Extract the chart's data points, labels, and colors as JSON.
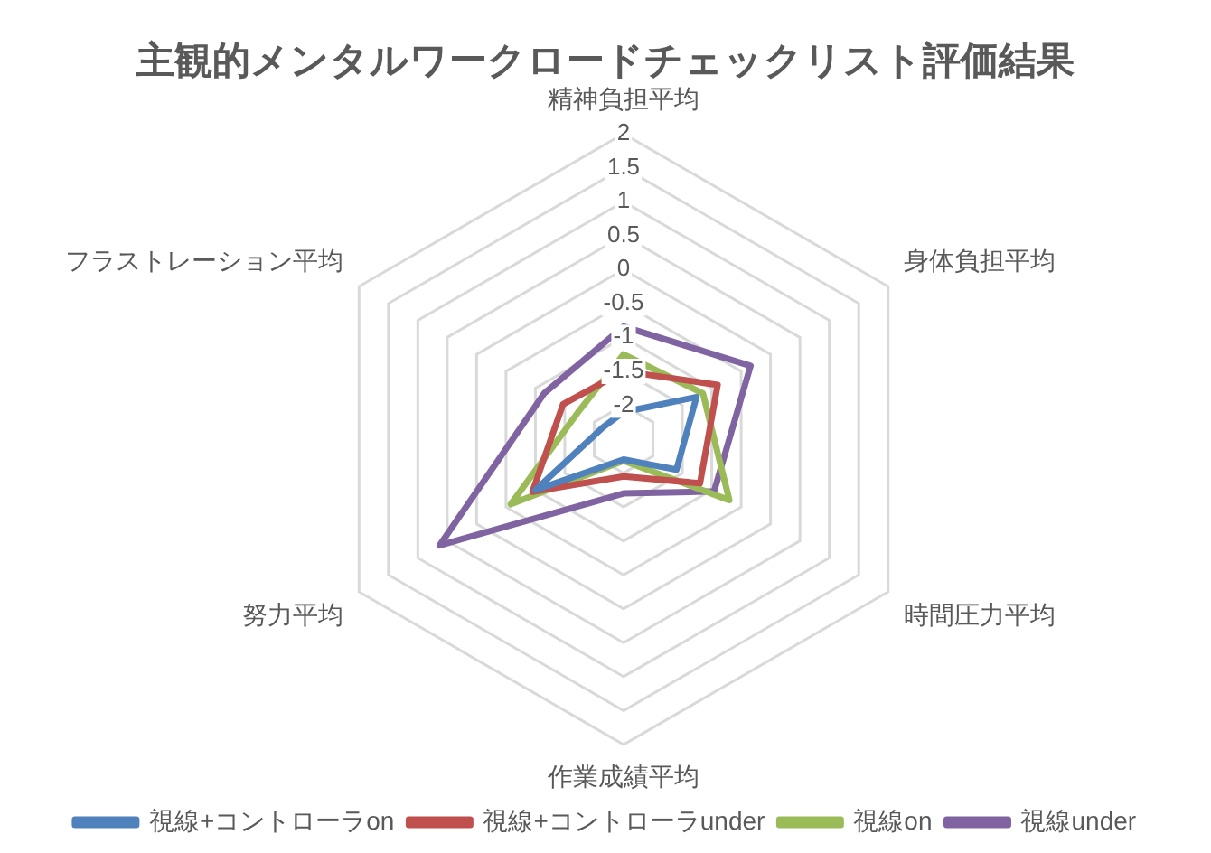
{
  "chart_data": {
    "type": "radar",
    "title": "主観的メンタルワークロードチェックリスト評価結果",
    "categories": [
      "精神負担平均",
      "身体負担平均",
      "時間圧力平均",
      "作業成績平均",
      "努力平均",
      "フラストレーション平均"
    ],
    "series": [
      {
        "name": "視線+コントローラon",
        "color": "#4f81bd",
        "values": [
          -2.1,
          -1.26,
          -1.6,
          -2.2,
          -1.0,
          -2.15
        ]
      },
      {
        "name": "視線+コントローラunder",
        "color": "#c0504d",
        "values": [
          -1.5,
          -0.9,
          -1.2,
          -1.95,
          -0.95,
          -1.47
        ]
      },
      {
        "name": "視線on",
        "color": "#9bbb59",
        "values": [
          -1.25,
          -1.15,
          -0.7,
          -2.18,
          -0.58,
          -1.72
        ]
      },
      {
        "name": "視線under",
        "color": "#8064a2",
        "values": [
          -0.84,
          -0.34,
          -0.96,
          -1.7,
          0.63,
          -1.15
        ]
      }
    ],
    "ylim": [
      -2.5,
      2
    ],
    "yticks": [
      -2,
      -1.5,
      -1,
      -0.5,
      0,
      0.5,
      1,
      1.5,
      2
    ],
    "grid": true,
    "legend": "bottom",
    "marker": "none"
  }
}
